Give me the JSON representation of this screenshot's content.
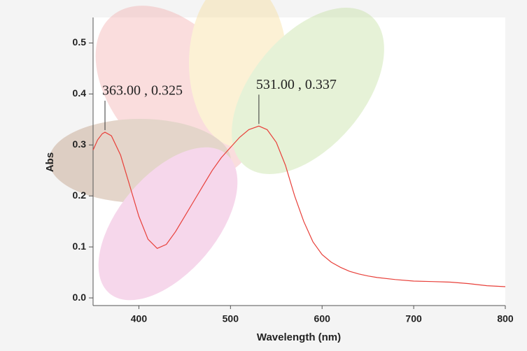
{
  "chart_data": {
    "type": "line",
    "x_label": "Wavelength (nm)",
    "y_label": "Abs",
    "x": [
      350,
      355,
      360,
      363,
      370,
      380,
      390,
      400,
      410,
      420,
      430,
      440,
      450,
      460,
      470,
      480,
      490,
      500,
      510,
      520,
      531,
      540,
      550,
      560,
      570,
      580,
      590,
      600,
      610,
      620,
      630,
      640,
      650,
      660,
      680,
      700,
      720,
      740,
      760,
      780,
      800
    ],
    "series": [
      {
        "color": "#e8403a",
        "values": [
          0.29,
          0.31,
          0.322,
          0.325,
          0.318,
          0.28,
          0.22,
          0.16,
          0.115,
          0.097,
          0.105,
          0.13,
          0.16,
          0.19,
          0.22,
          0.25,
          0.275,
          0.295,
          0.315,
          0.33,
          0.337,
          0.33,
          0.305,
          0.26,
          0.2,
          0.15,
          0.11,
          0.085,
          0.07,
          0.06,
          0.052,
          0.047,
          0.043,
          0.04,
          0.036,
          0.033,
          0.032,
          0.031,
          0.028,
          0.024,
          0.022
        ]
      }
    ],
    "annotations": [
      {
        "x": 363,
        "y": 0.325,
        "label": "363.00 , 0.325"
      },
      {
        "x": 531,
        "y": 0.337,
        "label": "531.00 , 0.337"
      }
    ],
    "xlim": [
      350,
      800
    ],
    "xticks": [
      400,
      500,
      600,
      700,
      800
    ],
    "ylim": [
      -0.015,
      0.55
    ],
    "yticks": [
      {
        "value": 0,
        "label": "0.0"
      },
      0.1,
      0.2,
      0.3,
      0.4,
      0.5
    ]
  }
}
